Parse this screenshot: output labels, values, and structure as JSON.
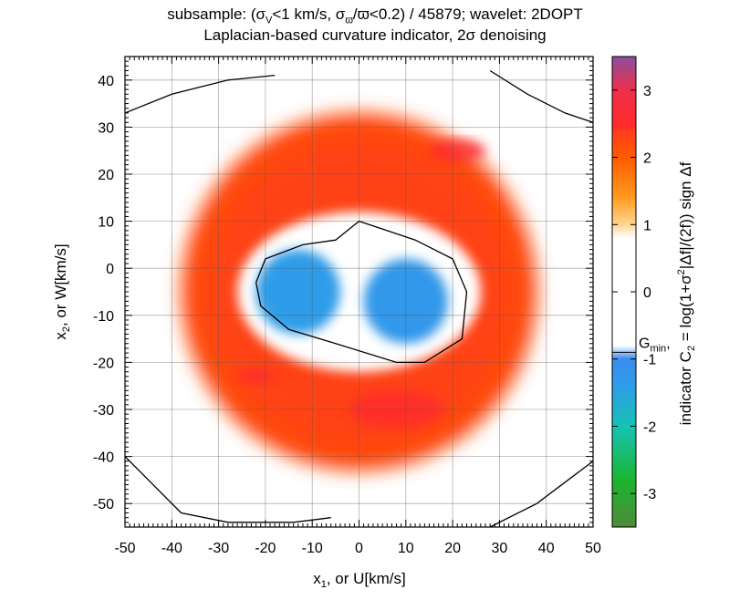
{
  "title_line1": {
    "pre": "subsample: (σ",
    "sub1": "V",
    "mid1": "<1 km/s, σ",
    "sub2": "ϖ",
    "mid2": "/ϖ<0.2) / 45879; wavelet: 2DOPT"
  },
  "title_line2": "Laplacian-based curvature indicator, 2σ denoising",
  "xlabel": {
    "pre": "x",
    "sub": "1",
    "post": ", or U[km/s]"
  },
  "ylabel": {
    "pre": "x",
    "sub": "2",
    "post": ", or W[km/s]"
  },
  "colorbar_label": {
    "pre": "indicator C",
    "sub": "2",
    "mid": " = log(1+σ",
    "sup": "2",
    "post": "|Δf|/(2f)) sign Δf"
  },
  "gmin_label": {
    "pre": "G",
    "sub": "min"
  },
  "chart_data": {
    "type": "heatmap",
    "xlim": [
      -50,
      50
    ],
    "ylim": [
      -55,
      45
    ],
    "x_ticks": [
      -50,
      -40,
      -30,
      -20,
      -10,
      0,
      10,
      20,
      30,
      40,
      50
    ],
    "y_ticks": [
      -50,
      -40,
      -30,
      -20,
      -10,
      0,
      10,
      20,
      30,
      40
    ],
    "colorbar": {
      "range": [
        -3.5,
        3.5
      ],
      "ticks": [
        -3,
        -2,
        -1,
        0,
        1,
        2,
        3
      ],
      "stops": [
        {
          "value": -3.5,
          "color": "#4e8a3a"
        },
        {
          "value": -2.8,
          "color": "#1bb52f"
        },
        {
          "value": -2.0,
          "color": "#16c2b4"
        },
        {
          "value": -1.4,
          "color": "#2f9ce8"
        },
        {
          "value": -1.0,
          "color": "#3a8df0"
        },
        {
          "value": -0.8,
          "color": "#ffffff"
        },
        {
          "value": 0.8,
          "color": "#ffffff"
        },
        {
          "value": 1.0,
          "color": "#ffd690"
        },
        {
          "value": 1.4,
          "color": "#ff9a1f"
        },
        {
          "value": 2.0,
          "color": "#ff5a00"
        },
        {
          "value": 2.4,
          "color": "#ff3b1d"
        },
        {
          "value": 2.45,
          "color": "#ff2a2a"
        },
        {
          "value": 3.0,
          "color": "#ef2f4a"
        },
        {
          "value": 3.5,
          "color": "#8a4f9e"
        }
      ]
    },
    "gmin_value": -0.9,
    "features": [
      {
        "kind": "ring",
        "center": [
          0,
          -5
        ],
        "radius": 38,
        "value": 2.2
      },
      {
        "kind": "blob",
        "center": [
          -13,
          -5
        ],
        "radius": 9,
        "value": -1.4
      },
      {
        "kind": "blob",
        "center": [
          10,
          -7
        ],
        "radius": 9,
        "value": -1.3
      },
      {
        "kind": "patch",
        "center": [
          8,
          -30
        ],
        "radius": 10,
        "value": 2.5
      },
      {
        "kind": "patch",
        "center": [
          21,
          25
        ],
        "radius": 6,
        "value": 2.6
      },
      {
        "kind": "patch",
        "center": [
          -22,
          -23
        ],
        "radius": 4,
        "value": 2.5
      }
    ],
    "contours": [
      {
        "name": "inner",
        "points": [
          [
            -22,
            -3
          ],
          [
            -20,
            2
          ],
          [
            -12,
            5
          ],
          [
            -5,
            6
          ],
          [
            0,
            10
          ],
          [
            6,
            8
          ],
          [
            12,
            6
          ],
          [
            20,
            2
          ],
          [
            23,
            -5
          ],
          [
            22,
            -15
          ],
          [
            14,
            -20
          ],
          [
            8,
            -20
          ],
          [
            -5,
            -16
          ],
          [
            -15,
            -13
          ],
          [
            -21,
            -8
          ],
          [
            -22,
            -3
          ]
        ]
      },
      {
        "name": "top-left",
        "points": [
          [
            -50,
            33
          ],
          [
            -40,
            37
          ],
          [
            -28,
            40
          ],
          [
            -18,
            41
          ]
        ]
      },
      {
        "name": "top-right",
        "points": [
          [
            28,
            42
          ],
          [
            36,
            37
          ],
          [
            44,
            33
          ],
          [
            50,
            31
          ]
        ]
      },
      {
        "name": "bottom-left",
        "points": [
          [
            -50,
            -40
          ],
          [
            -44,
            -46
          ],
          [
            -38,
            -52
          ],
          [
            -28,
            -54
          ],
          [
            -14,
            -54
          ],
          [
            -6,
            -53
          ]
        ]
      },
      {
        "name": "bottom-right",
        "points": [
          [
            28,
            -55
          ],
          [
            38,
            -50
          ],
          [
            46,
            -44
          ],
          [
            50,
            -41
          ]
        ]
      }
    ]
  }
}
